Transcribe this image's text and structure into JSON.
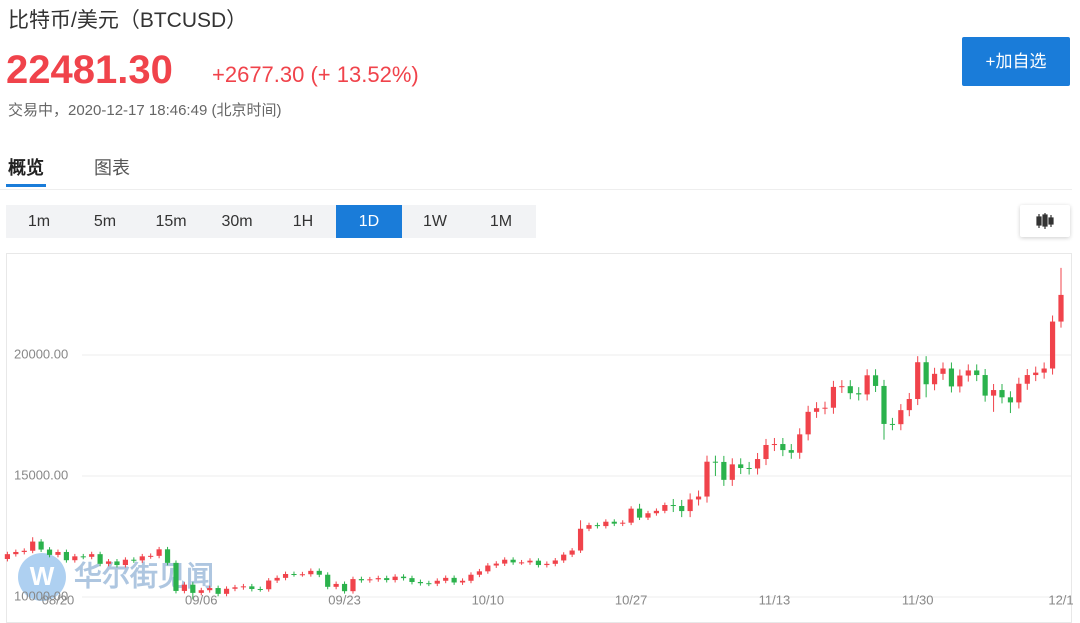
{
  "header": {
    "title": "比特币/美元（BTCUSD）",
    "price": "22481.30",
    "change": "+2677.30 (+ 13.52%)",
    "status": "交易中，2020-12-17 18:46:49 (北京时间)",
    "watchlist_button": "+加自选"
  },
  "tabs": [
    "概览",
    "图表"
  ],
  "active_tab": 0,
  "periods": [
    "1m",
    "5m",
    "15m",
    "30m",
    "1H",
    "1D",
    "1W",
    "1M"
  ],
  "active_period": 5,
  "chart_data": {
    "type": "candlestick",
    "watermark": "华尔街见闻",
    "up_color": "#f0434b",
    "down_color": "#2bb24c",
    "grid": true,
    "ylim": [
      9380,
      24130
    ],
    "yticks": [
      {
        "value": 10000,
        "label": "10000.00"
      },
      {
        "value": 15000,
        "label": "15000.00"
      },
      {
        "value": 20000,
        "label": "20000.00"
      }
    ],
    "categories": [
      null,
      null,
      null,
      null,
      null,
      null,
      "08/20",
      null,
      null,
      null,
      null,
      null,
      null,
      null,
      null,
      null,
      null,
      null,
      null,
      null,
      null,
      null,
      null,
      "09/06",
      null,
      null,
      null,
      null,
      null,
      null,
      null,
      null,
      null,
      null,
      null,
      null,
      null,
      null,
      null,
      null,
      "09/23",
      null,
      null,
      null,
      null,
      null,
      null,
      null,
      null,
      null,
      null,
      null,
      null,
      null,
      null,
      null,
      null,
      "10/10",
      null,
      null,
      null,
      null,
      null,
      null,
      null,
      null,
      null,
      null,
      null,
      null,
      null,
      null,
      null,
      null,
      "10/27",
      null,
      null,
      null,
      null,
      null,
      null,
      null,
      null,
      null,
      null,
      null,
      null,
      null,
      null,
      null,
      null,
      "11/13",
      null,
      null,
      null,
      null,
      null,
      null,
      null,
      null,
      null,
      null,
      null,
      null,
      null,
      null,
      null,
      null,
      "11/30",
      null,
      null,
      null,
      null,
      null,
      null,
      null,
      null,
      null,
      null,
      null,
      null,
      null,
      null,
      null,
      null,
      "12/1"
    ],
    "open": [
      11570,
      11770,
      11860,
      11910,
      12290,
      11960,
      11740,
      11860,
      11520,
      11680,
      11660,
      11770,
      11370,
      11470,
      11320,
      11540,
      11510,
      11680,
      11700,
      11970,
      11410,
      10250,
      10510,
      10170,
      10280,
      10370,
      10130,
      10340,
      10400,
      10440,
      10330,
      10320,
      10680,
      10790,
      10950,
      10940,
      10940,
      11080,
      10920,
      10420,
      10540,
      10240,
      10740,
      10690,
      10730,
      10780,
      10700,
      10840,
      10780,
      10620,
      10570,
      10550,
      10670,
      10790,
      10600,
      10670,
      10920,
      11060,
      11300,
      11380,
      11540,
      11430,
      11430,
      11500,
      11320,
      11370,
      11510,
      11750,
      11920,
      12820,
      12970,
      12930,
      13110,
      13030,
      13070,
      13650,
      13280,
      13460,
      13560,
      13800,
      13760,
      13550,
      14030,
      14150,
      15590,
      15580,
      14840,
      15480,
      15330,
      15310,
      15700,
      16280,
      16320,
      16070,
      15960,
      16720,
      17650,
      17800,
      17820,
      18680,
      18710,
      18420,
      18370,
      19160,
      18720,
      17150,
      17140,
      17720,
      18180,
      19700,
      18790,
      19220,
      19440,
      18700,
      19150,
      19360,
      19170,
      18320,
      18550,
      18250,
      18040,
      18810,
      19170,
      19270,
      19440,
      21380
    ],
    "high": [
      11870,
      11960,
      12010,
      12470,
      12390,
      12060,
      11960,
      11960,
      11780,
      11780,
      11870,
      11870,
      11570,
      11570,
      11640,
      11640,
      11780,
      11800,
      12070,
      12070,
      11510,
      10610,
      10610,
      10380,
      10470,
      10470,
      10440,
      10500,
      10540,
      10540,
      10430,
      10780,
      10890,
      11050,
      11050,
      11040,
      11180,
      11180,
      11020,
      10640,
      10640,
      10840,
      10840,
      10830,
      10880,
      10880,
      10940,
      10940,
      10880,
      10720,
      10670,
      10770,
      10890,
      10890,
      10770,
      11020,
      11160,
      11400,
      11480,
      11640,
      11640,
      11530,
      11600,
      11600,
      11470,
      11610,
      11850,
      12020,
      13170,
      13070,
      13070,
      13210,
      13210,
      13170,
      13750,
      13850,
      13560,
      13660,
      13900,
      14050,
      14010,
      14280,
      14400,
      15840,
      15840,
      15830,
      15730,
      15730,
      15580,
      15950,
      16530,
      16570,
      16570,
      16320,
      16970,
      17900,
      18050,
      18070,
      18930,
      18960,
      18960,
      18670,
      19410,
      19410,
      18970,
      17400,
      17970,
      18430,
      19950,
      19950,
      19470,
      19690,
      19690,
      19400,
      19610,
      19610,
      19420,
      18800,
      18800,
      18500,
      19060,
      19420,
      19520,
      19690,
      21630,
      23600
    ],
    "low": [
      11470,
      11670,
      11760,
      11810,
      11860,
      11640,
      11640,
      11420,
      11420,
      11560,
      11560,
      11270,
      11270,
      11220,
      11220,
      11410,
      11410,
      11580,
      11600,
      11310,
      10150,
      10150,
      9900,
      10070,
      10180,
      10030,
      10030,
      10240,
      10300,
      10230,
      10220,
      10220,
      10580,
      10690,
      10840,
      10840,
      10840,
      10820,
      10320,
      10320,
      10140,
      10140,
      10590,
      10590,
      10630,
      10600,
      10600,
      10680,
      10520,
      10470,
      10450,
      10450,
      10570,
      10500,
      10500,
      10570,
      10820,
      10960,
      11200,
      11280,
      11330,
      11330,
      11330,
      11220,
      11220,
      11270,
      11410,
      11650,
      11820,
      12720,
      12830,
      12830,
      12930,
      12930,
      12970,
      13180,
      13180,
      13360,
      13460,
      13510,
      13300,
      13300,
      13780,
      13900,
      15000,
      14590,
      14590,
      15080,
      15060,
      15060,
      15450,
      16030,
      15820,
      15710,
      15710,
      16470,
      17400,
      17550,
      17570,
      18430,
      18170,
      18120,
      18120,
      18470,
      16500,
      16890,
      16890,
      17470,
      17930,
      18250,
      18540,
      18970,
      18450,
      18450,
      18900,
      18920,
      18070,
      17650,
      18000,
      17600,
      17790,
      18560,
      18920,
      19020,
      19190,
      21130
    ],
    "close": [
      11770,
      11860,
      11910,
      12290,
      11960,
      11740,
      11860,
      11520,
      11680,
      11660,
      11770,
      11370,
      11470,
      11320,
      11540,
      11510,
      11680,
      11700,
      11970,
      11410,
      10250,
      10510,
      10170,
      10280,
      10370,
      10130,
      10340,
      10400,
      10440,
      10330,
      10320,
      10680,
      10790,
      10950,
      10940,
      10940,
      11080,
      10920,
      10420,
      10540,
      10240,
      10740,
      10690,
      10730,
      10780,
      10700,
      10840,
      10780,
      10620,
      10570,
      10550,
      10670,
      10790,
      10600,
      10670,
      10920,
      11060,
      11300,
      11380,
      11540,
      11430,
      11430,
      11500,
      11320,
      11370,
      11510,
      11750,
      11920,
      12820,
      12970,
      12930,
      13110,
      13030,
      13070,
      13650,
      13280,
      13460,
      13560,
      13800,
      13760,
      13550,
      14030,
      14150,
      15590,
      15580,
      14840,
      15480,
      15330,
      15310,
      15700,
      16280,
      16320,
      16070,
      15960,
      16720,
      17650,
      17800,
      17820,
      18680,
      18710,
      18420,
      18370,
      19160,
      18720,
      17150,
      17140,
      17720,
      18180,
      19700,
      18790,
      19220,
      19440,
      18700,
      19150,
      19360,
      19170,
      18320,
      18550,
      18250,
      18040,
      18810,
      19170,
      19270,
      19440,
      21380,
      22481.3
    ]
  }
}
